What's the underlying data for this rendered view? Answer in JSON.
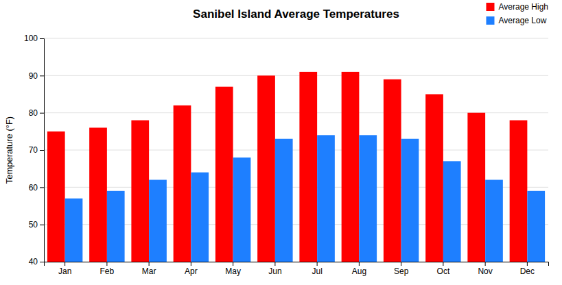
{
  "chart_data": {
    "type": "bar",
    "title": "Sanibel Island Average Temperatures",
    "categories": [
      "Jan",
      "Feb",
      "Mar",
      "Apr",
      "May",
      "Jun",
      "Jul",
      "Aug",
      "Sep",
      "Oct",
      "Nov",
      "Dec"
    ],
    "series": [
      {
        "name": "Average High",
        "color": "#FF0000",
        "values": [
          75,
          76,
          78,
          82,
          87,
          90,
          91,
          91,
          89,
          85,
          80,
          78
        ]
      },
      {
        "name": "Average Low",
        "color": "#1E7FFF",
        "values": [
          57,
          59,
          62,
          64,
          68,
          73,
          74,
          74,
          73,
          67,
          62,
          59
        ]
      }
    ],
    "ylabel": "Temperature (°F)",
    "ylim": [
      40,
      100
    ],
    "yticks": [
      40,
      50,
      60,
      70,
      80,
      90,
      100
    ],
    "grid": true,
    "legend": "upper-right"
  }
}
